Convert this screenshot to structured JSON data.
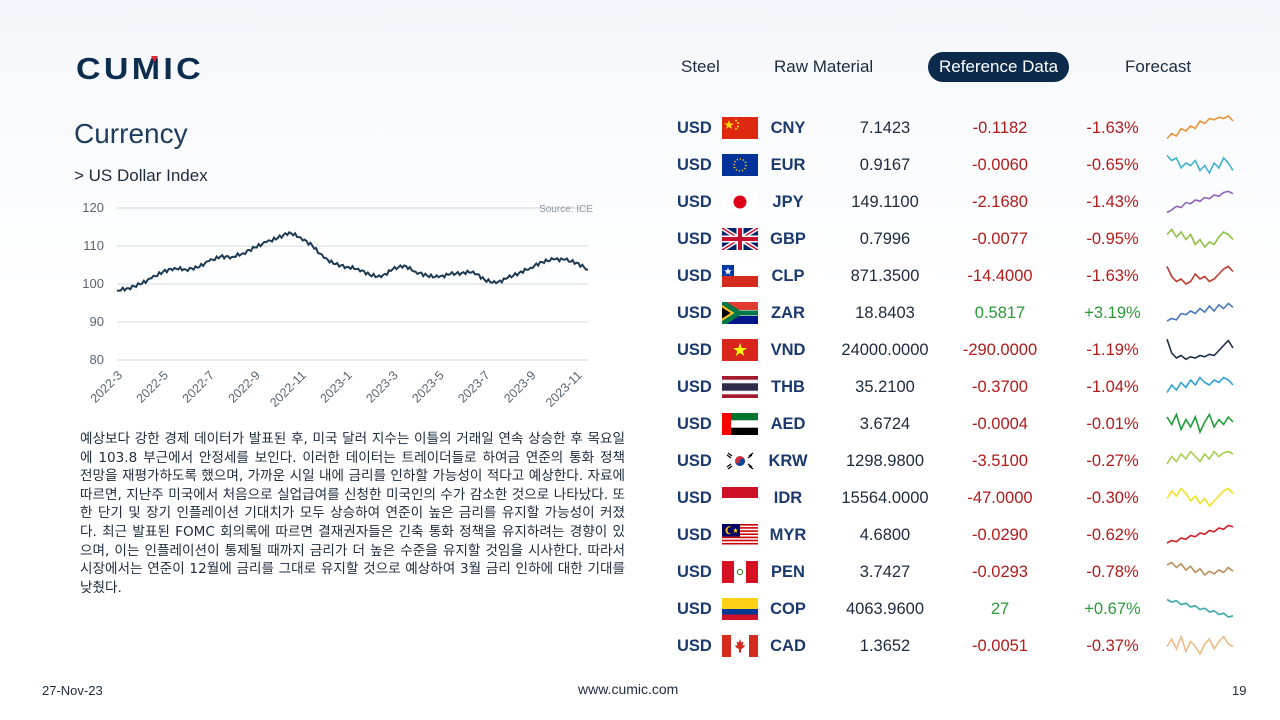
{
  "brand": {
    "logo_text": "CUMIC"
  },
  "nav": {
    "items": [
      {
        "label": "Steel",
        "active": false
      },
      {
        "label": "Raw Material",
        "active": false
      },
      {
        "label": "Reference Data",
        "active": true
      },
      {
        "label": "Forecast",
        "active": false
      }
    ]
  },
  "page": {
    "title": "Currency",
    "subtitle": "> US Dollar Index",
    "paragraph": "예상보다 강한 경제 데이터가 발표된 후, 미국 달러 지수는 이틀의 거래일 연속 상승한 후 목요일에 103.8 부근에서 안정세를 보인다. 이러한 데이터는 트레이더들로 하여금 연준의 통화 정책 전망을 재평가하도록 했으며, 가까운 시일 내에 금리를 인하할 가능성이 적다고 예상한다. 자료에 따르면, 지난주 미국에서 처음으로 실업급여를 신청한 미국인의 수가 감소한 것으로 나타났다. 또한 단기 및 장기 인플레이션 기대치가 모두 상승하여 연준이 높은 금리를 유지할 가능성이 커졌다. 최근 발표된 FOMC 회의록에 따르면 결재권자들은 긴축 통화 정책을 유지하려는 경향이 있으며, 이는 인플레이션이 통제될 때까지 금리가 더 높은 수준을 유지할 것임을 시사한다. 따라서 시장에서는 연준이 12월에 금리를 그대로 유지할 것으로 예상하여 3월 금리 인하에 대한 기대를 낮췄다."
  },
  "chart_data": {
    "type": "line",
    "title": "",
    "source_label": "Source: ICE",
    "ylim": [
      80,
      120
    ],
    "yticks": [
      80,
      90,
      100,
      110,
      120
    ],
    "grid": "horizontal",
    "x_tick_labels": [
      "2022-3",
      "2022-5",
      "2022-7",
      "2022-9",
      "2022-11",
      "2023-1",
      "2023-3",
      "2023-5",
      "2023-7",
      "2023-9",
      "2023-11"
    ],
    "x_month_range": [
      0,
      20.5
    ],
    "series": [
      {
        "color": "#1d3a52",
        "x": [
          0,
          0.5,
          1,
          1.5,
          2,
          2.5,
          3,
          3.5,
          4,
          4.5,
          5,
          5.5,
          6,
          6.5,
          7,
          7.5,
          8,
          8.5,
          9,
          9.5,
          10,
          10.5,
          11,
          11.5,
          12,
          12.5,
          13,
          13.5,
          14,
          14.5,
          15,
          15.5,
          16,
          16.5,
          17,
          17.5,
          18,
          18.5,
          19,
          19.5,
          20,
          20.5
        ],
        "y": [
          98.3,
          98.9,
          99.9,
          101.5,
          103.2,
          104.2,
          103.8,
          104.3,
          106.0,
          107.2,
          107.1,
          108.1,
          109.6,
          111.0,
          112.1,
          113.6,
          112.2,
          110.1,
          106.9,
          105.2,
          104.5,
          104.0,
          102.4,
          101.8,
          103.9,
          104.9,
          103.2,
          102.2,
          101.8,
          102.6,
          102.9,
          103.3,
          101.1,
          100.2,
          101.6,
          102.9,
          104.3,
          105.8,
          106.5,
          106.4,
          105.6,
          103.8
        ]
      }
    ]
  },
  "currencies": [
    {
      "base": "USD",
      "code": "CNY",
      "flag": "CN",
      "rate": "7.1423",
      "change": "-0.1182",
      "pct": "-1.63%",
      "direction": "down",
      "spark_color": "#e8943a",
      "spark": [
        0.1,
        0.3,
        0.2,
        0.5,
        0.4,
        0.6,
        0.5,
        0.8,
        0.7,
        0.9,
        0.85,
        0.95,
        0.9,
        1.0,
        0.8
      ]
    },
    {
      "base": "USD",
      "code": "EUR",
      "flag": "EU",
      "rate": "0.9167",
      "change": "-0.0060",
      "pct": "-0.65%",
      "direction": "down",
      "spark_color": "#3fb3d0",
      "spark": [
        0.9,
        0.7,
        0.8,
        0.4,
        0.6,
        0.5,
        0.7,
        0.3,
        0.5,
        0.2,
        0.6,
        0.4,
        0.8,
        0.6,
        0.3
      ]
    },
    {
      "base": "USD",
      "code": "JPY",
      "flag": "JP",
      "rate": "149.1100",
      "change": "-2.1680",
      "pct": "-1.43%",
      "direction": "down",
      "spark_color": "#8e63b8",
      "spark": [
        0.1,
        0.2,
        0.35,
        0.3,
        0.5,
        0.45,
        0.6,
        0.55,
        0.7,
        0.65,
        0.8,
        0.75,
        0.9,
        0.95,
        0.85
      ]
    },
    {
      "base": "USD",
      "code": "GBP",
      "flag": "GB",
      "rate": "0.7996",
      "change": "-0.0077",
      "pct": "-0.95%",
      "direction": "down",
      "spark_color": "#8cbf3f",
      "spark": [
        0.7,
        0.9,
        0.6,
        0.8,
        0.5,
        0.7,
        0.3,
        0.5,
        0.2,
        0.4,
        0.3,
        0.6,
        0.8,
        0.7,
        0.5
      ]
    },
    {
      "base": "USD",
      "code": "CLP",
      "flag": "CL",
      "rate": "871.3500",
      "change": "-14.4000",
      "pct": "-1.63%",
      "direction": "down",
      "spark_color": "#c0392b",
      "spark": [
        0.9,
        0.5,
        0.3,
        0.4,
        0.2,
        0.3,
        0.6,
        0.4,
        0.5,
        0.3,
        0.4,
        0.6,
        0.8,
        0.9,
        0.7
      ]
    },
    {
      "base": "USD",
      "code": "ZAR",
      "flag": "ZA",
      "rate": "18.8403",
      "change": "0.5817",
      "pct": "+3.19%",
      "direction": "up",
      "spark_color": "#4a78b8",
      "spark": [
        0.2,
        0.3,
        0.25,
        0.5,
        0.45,
        0.6,
        0.5,
        0.7,
        0.55,
        0.8,
        0.6,
        0.85,
        0.7,
        0.9,
        0.75
      ]
    },
    {
      "base": "USD",
      "code": "VND",
      "flag": "VN",
      "rate": "24000.0000",
      "change": "-290.0000",
      "pct": "-1.19%",
      "direction": "down",
      "spark_color": "#1c2e4a",
      "spark": [
        0.95,
        0.4,
        0.2,
        0.3,
        0.15,
        0.25,
        0.2,
        0.3,
        0.25,
        0.35,
        0.3,
        0.5,
        0.7,
        0.9,
        0.6
      ]
    },
    {
      "base": "USD",
      "code": "THB",
      "flag": "TH",
      "rate": "35.2100",
      "change": "-0.3700",
      "pct": "-1.04%",
      "direction": "down",
      "spark_color": "#2aa3d8",
      "spark": [
        0.3,
        0.6,
        0.4,
        0.7,
        0.5,
        0.8,
        0.6,
        0.9,
        0.7,
        0.6,
        0.8,
        0.7,
        0.9,
        0.8,
        0.6
      ]
    },
    {
      "base": "USD",
      "code": "AED",
      "flag": "AE",
      "rate": "3.6724",
      "change": "-0.0004",
      "pct": "-0.01%",
      "direction": "down",
      "spark_color": "#1e9e3a",
      "spark": [
        0.8,
        0.5,
        0.9,
        0.3,
        0.7,
        0.4,
        0.8,
        0.2,
        0.6,
        0.9,
        0.4,
        0.7,
        0.5,
        0.8,
        0.6
      ]
    },
    {
      "base": "USD",
      "code": "KRW",
      "flag": "KR",
      "rate": "1298.9800",
      "change": "-3.5100",
      "pct": "-0.27%",
      "direction": "down",
      "spark_color": "#a4cf4a",
      "spark": [
        0.4,
        0.7,
        0.5,
        0.8,
        0.6,
        0.9,
        0.7,
        0.5,
        0.8,
        0.6,
        0.9,
        0.7,
        0.85,
        0.9,
        0.8
      ]
    },
    {
      "base": "USD",
      "code": "IDR",
      "flag": "ID",
      "rate": "15564.0000",
      "change": "-47.0000",
      "pct": "-0.30%",
      "direction": "down",
      "spark_color": "#f2e01c",
      "spark": [
        0.5,
        0.8,
        0.6,
        0.9,
        0.7,
        0.4,
        0.6,
        0.3,
        0.5,
        0.2,
        0.4,
        0.6,
        0.8,
        0.9,
        0.7
      ]
    },
    {
      "base": "USD",
      "code": "MYR",
      "flag": "MY",
      "rate": "4.6800",
      "change": "-0.0290",
      "pct": "-0.62%",
      "direction": "down",
      "spark_color": "#d0202a",
      "spark": [
        0.2,
        0.3,
        0.25,
        0.4,
        0.35,
        0.5,
        0.45,
        0.6,
        0.55,
        0.7,
        0.65,
        0.8,
        0.75,
        0.9,
        0.85
      ]
    },
    {
      "base": "USD",
      "code": "PEN",
      "flag": "PE",
      "rate": "3.7427",
      "change": "-0.0293",
      "pct": "-0.78%",
      "direction": "down",
      "spark_color": "#b8915a",
      "spark": [
        0.8,
        0.9,
        0.7,
        0.85,
        0.6,
        0.75,
        0.5,
        0.65,
        0.4,
        0.55,
        0.45,
        0.6,
        0.5,
        0.7,
        0.55
      ]
    },
    {
      "base": "USD",
      "code": "COP",
      "flag": "CO",
      "rate": "4063.9600",
      "change": "27",
      "pct": "+0.67%",
      "direction": "up",
      "spark_color": "#3aa9a3",
      "spark": [
        0.9,
        0.8,
        0.85,
        0.7,
        0.75,
        0.6,
        0.65,
        0.5,
        0.55,
        0.4,
        0.45,
        0.3,
        0.35,
        0.2,
        0.25
      ]
    },
    {
      "base": "USD",
      "code": "CAD",
      "flag": "CA",
      "rate": "1.3652",
      "change": "-0.0051",
      "pct": "-0.37%",
      "direction": "down",
      "spark_color": "#f0b985",
      "spark": [
        0.5,
        0.8,
        0.4,
        0.9,
        0.3,
        0.7,
        0.5,
        0.2,
        0.6,
        0.8,
        0.4,
        0.7,
        0.9,
        0.6,
        0.5
      ]
    }
  ],
  "footer": {
    "date": "27-Nov-23",
    "url": "www.cumic.com",
    "page": "19"
  }
}
